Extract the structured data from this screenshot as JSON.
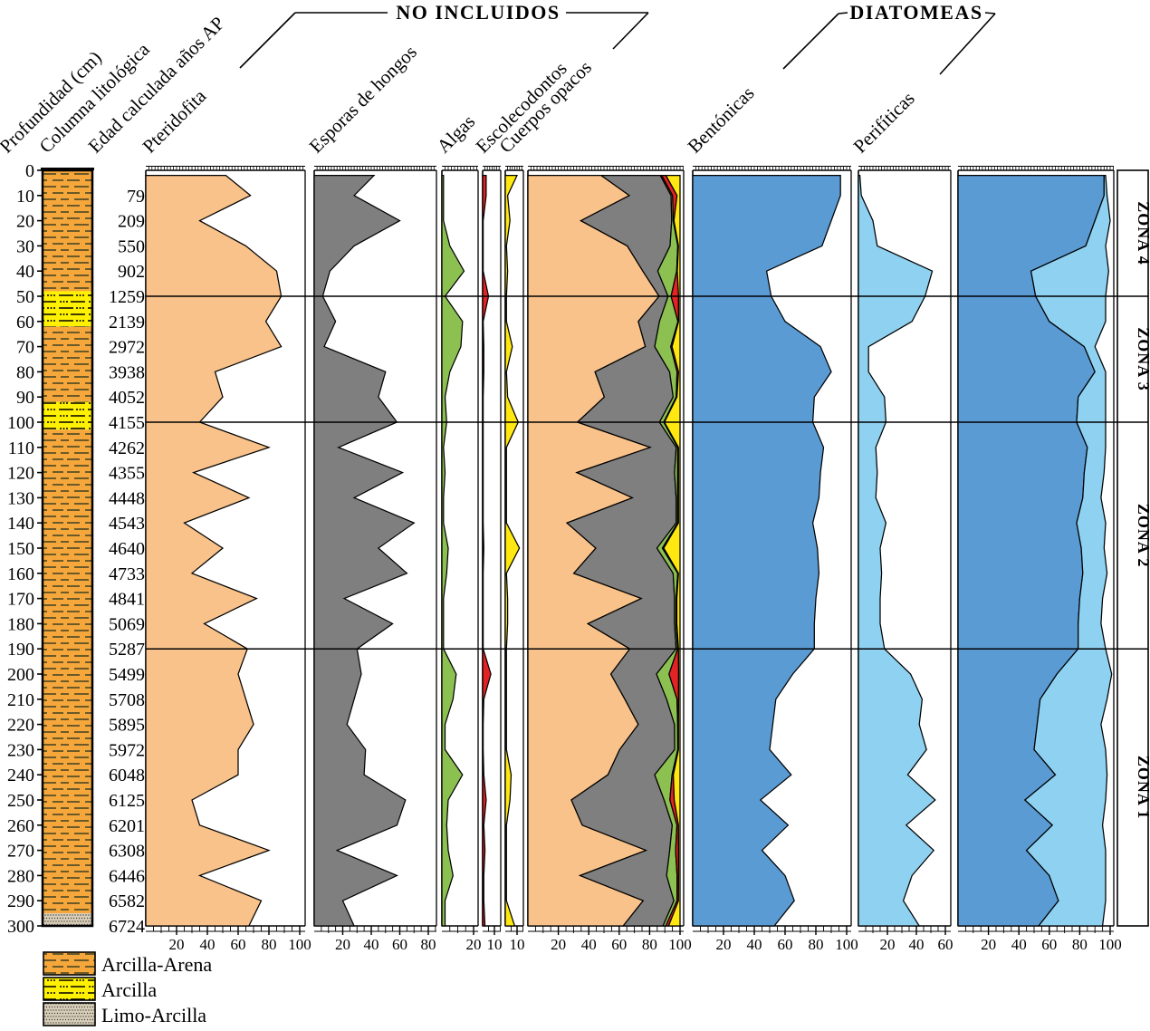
{
  "column_headers": [
    {
      "id": "profundidad",
      "label": "Profundidad (cm)"
    },
    {
      "id": "columna",
      "label": "Columna litológica"
    },
    {
      "id": "edad",
      "label": "Edad calculada años AP"
    },
    {
      "id": "pteridofita",
      "label": "Pteridofita"
    },
    {
      "id": "esporas",
      "label": "Esporas de hongos"
    },
    {
      "id": "algas",
      "label": "Algas"
    },
    {
      "id": "escolecodontos",
      "label": "Escolecodontos"
    },
    {
      "id": "cuerpos_opacos",
      "label": "Cuerpos opacos"
    },
    {
      "id": "bentonicas",
      "label": "Bentónicas"
    },
    {
      "id": "perifiticas",
      "label": "Perifíticas"
    }
  ],
  "group_headers": {
    "no_incluidos": "NO INCLUIDOS",
    "diatomeas": "DIATOMEAS"
  },
  "zones": [
    {
      "label": "ZONA 4",
      "from_cm": 0,
      "to_cm": 50
    },
    {
      "label": "ZONA 3",
      "from_cm": 50,
      "to_cm": 100
    },
    {
      "label": "ZONA 2",
      "from_cm": 100,
      "to_cm": 190
    },
    {
      "label": "ZONA 1",
      "from_cm": 190,
      "to_cm": 300
    }
  ],
  "legend": [
    {
      "label": "Arcilla-Arena",
      "pattern": "arcilla_arena"
    },
    {
      "label": "Arcilla",
      "pattern": "arcilla"
    },
    {
      "label": "Limo-Arcilla",
      "pattern": "limo_arcilla"
    }
  ],
  "lithology_bands": [
    {
      "type": "arcilla_arena",
      "from_cm": 0,
      "to_cm": 48
    },
    {
      "type": "arcilla",
      "from_cm": 48,
      "to_cm": 62
    },
    {
      "type": "arcilla_arena",
      "from_cm": 62,
      "to_cm": 92
    },
    {
      "type": "arcilla",
      "from_cm": 92,
      "to_cm": 103
    },
    {
      "type": "arcilla_arena",
      "from_cm": 103,
      "to_cm": 295
    },
    {
      "type": "limo_arcilla",
      "from_cm": 295,
      "to_cm": 300
    }
  ],
  "colors": {
    "pteridofita": "#F8C28A",
    "esporas": "#7F7F7F",
    "algas": "#8CC152",
    "escolecodontos": "#E32226",
    "cuerpos_opacos": "#FFE812",
    "bentonicas": "#5A9BD4",
    "perifiticas": "#8ED1F0",
    "lith_arcilla_arena": "#F6A73C",
    "lith_arcilla": "#FFF101",
    "lith_limo": "#D8CDB6",
    "lith_dash": "#6B5A28"
  },
  "chart_data": {
    "type": "area",
    "orientation": "depth-profile",
    "depth_axis_label": "Profundidad (cm)",
    "depth_range_cm": [
      0,
      300
    ],
    "depth_tick_step_cm": 10,
    "depths_cm": [
      2,
      10,
      20,
      30,
      40,
      50,
      60,
      70,
      80,
      90,
      100,
      110,
      120,
      130,
      140,
      150,
      160,
      170,
      180,
      190,
      200,
      210,
      220,
      230,
      240,
      250,
      260,
      270,
      280,
      290,
      300
    ],
    "ages": {
      "label": "Edad calculada años AP",
      "depths_cm": [
        10,
        20,
        30,
        40,
        50,
        60,
        70,
        80,
        90,
        100,
        110,
        120,
        130,
        140,
        150,
        160,
        170,
        180,
        190,
        200,
        210,
        220,
        230,
        240,
        250,
        260,
        270,
        280,
        290,
        300
      ],
      "values": [
        79,
        209,
        550,
        902,
        1259,
        2139,
        2972,
        3938,
        4052,
        4155,
        4262,
        4355,
        4448,
        4543,
        4640,
        4733,
        4841,
        5069,
        5287,
        5499,
        5708,
        5895,
        5972,
        6048,
        6125,
        6201,
        6308,
        6446,
        6582,
        6724
      ]
    },
    "series": {
      "pteridofita": [
        52,
        68,
        35,
        65,
        85,
        88,
        78,
        88,
        45,
        50,
        35,
        80,
        31,
        67,
        25,
        50,
        30,
        72,
        38,
        66,
        60,
        65,
        70,
        60,
        60,
        30,
        35,
        80,
        35,
        75,
        67
      ],
      "esporas": [
        42,
        28,
        60,
        28,
        11,
        6,
        15,
        7,
        50,
        45,
        58,
        17,
        62,
        28,
        70,
        45,
        65,
        21,
        55,
        30,
        33,
        28,
        23,
        36,
        35,
        64,
        58,
        16,
        58,
        20,
        28
      ],
      "algas": [
        1,
        1,
        1,
        5,
        14,
        2,
        13,
        12,
        5,
        2,
        3,
        1,
        2,
        1,
        1,
        4,
        3,
        1,
        1,
        1,
        9,
        7,
        2,
        2,
        13,
        4,
        3,
        4,
        7,
        2,
        2
      ],
      "escolecodontos": [
        3,
        3,
        0.5,
        0.5,
        0.5,
        5,
        0.5,
        1,
        1,
        0.5,
        0.5,
        0.5,
        0.5,
        0.5,
        0.5,
        1,
        0.5,
        0.5,
        0.5,
        0.5,
        7,
        1,
        0.5,
        0.5,
        1,
        3,
        1,
        2,
        1,
        1,
        2
      ],
      "cuerpos_opacos": [
        10,
        2,
        4,
        1,
        2,
        1,
        1,
        6,
        1,
        2,
        11,
        1,
        1,
        1,
        1,
        12,
        1,
        2,
        2,
        1,
        1,
        1,
        1,
        1,
        5,
        4,
        1,
        1,
        1,
        1,
        8
      ],
      "bentonicas": [
        96,
        96,
        90,
        84,
        48,
        51,
        60,
        83,
        90,
        79,
        78,
        85,
        83,
        82,
        78,
        81,
        82,
        80,
        79,
        79,
        65,
        54,
        52,
        50,
        64,
        44,
        62,
        45,
        60,
        66,
        53
      ],
      "perifiticas": [
        1,
        2,
        10,
        13,
        51,
        46,
        37,
        7,
        7,
        18,
        19,
        12,
        13,
        12,
        19,
        15,
        16,
        15,
        15,
        18,
        36,
        44,
        42,
        47,
        34,
        53,
        33,
        52,
        37,
        31,
        42
      ]
    },
    "panels": [
      {
        "id": "pteridofita",
        "label": "Pteridofita",
        "mode": "single",
        "series": [
          "pteridofita"
        ],
        "color_ids": [
          "pteridofita"
        ],
        "axis_max": 103,
        "major_ticks": [
          20,
          40,
          60,
          80,
          100
        ]
      },
      {
        "id": "esporas",
        "label": "Esporas de hongos",
        "mode": "single",
        "series": [
          "esporas"
        ],
        "color_ids": [
          "esporas"
        ],
        "axis_max": 85,
        "major_ticks": [
          20,
          40,
          60,
          80
        ]
      },
      {
        "id": "algas",
        "label": "Algas",
        "mode": "single",
        "series": [
          "algas"
        ],
        "color_ids": [
          "algas"
        ],
        "axis_max": 22,
        "major_ticks": [
          20
        ]
      },
      {
        "id": "escolecodontos",
        "label": "Escolecodontos",
        "mode": "single",
        "series": [
          "escolecodontos"
        ],
        "color_ids": [
          "escolecodontos"
        ],
        "axis_max": 15,
        "major_ticks": [
          10
        ]
      },
      {
        "id": "cuerpos_opacos",
        "label": "Cuerpos opacos",
        "mode": "single",
        "series": [
          "cuerpos_opacos"
        ],
        "color_ids": [
          "cuerpos_opacos"
        ],
        "axis_max": 15,
        "major_ticks": [
          10
        ]
      },
      {
        "id": "no_incluidos_sum",
        "label": "",
        "mode": "stacked-normalized",
        "series": [
          "pteridofita",
          "esporas",
          "algas",
          "escolecodontos",
          "cuerpos_opacos"
        ],
        "color_ids": [
          "pteridofita",
          "esporas",
          "algas",
          "escolecodontos",
          "cuerpos_opacos"
        ],
        "axis_max": 102,
        "major_ticks": [
          20,
          40,
          60,
          80,
          100
        ]
      },
      {
        "id": "bentonicas",
        "label": "Bentónicas",
        "mode": "single",
        "series": [
          "bentonicas"
        ],
        "color_ids": [
          "bentonicas"
        ],
        "axis_max": 103,
        "major_ticks": [
          20,
          40,
          60,
          80,
          100
        ]
      },
      {
        "id": "perifiticas",
        "label": "Perifíticas",
        "mode": "single",
        "series": [
          "perifiticas"
        ],
        "color_ids": [
          "perifiticas"
        ],
        "axis_max": 63,
        "major_ticks": [
          20,
          40,
          60
        ]
      },
      {
        "id": "diatomeas_sum",
        "label": "",
        "mode": "stacked",
        "series": [
          "bentonicas",
          "perifiticas"
        ],
        "color_ids": [
          "bentonicas",
          "perifiticas"
        ],
        "axis_max": 102,
        "major_ticks": [
          20,
          40,
          60,
          80,
          100
        ]
      }
    ],
    "zone_boundaries_cm": [
      50,
      100,
      190
    ],
    "grid": "zone-lines-only",
    "legend_position": "bottom-left"
  }
}
